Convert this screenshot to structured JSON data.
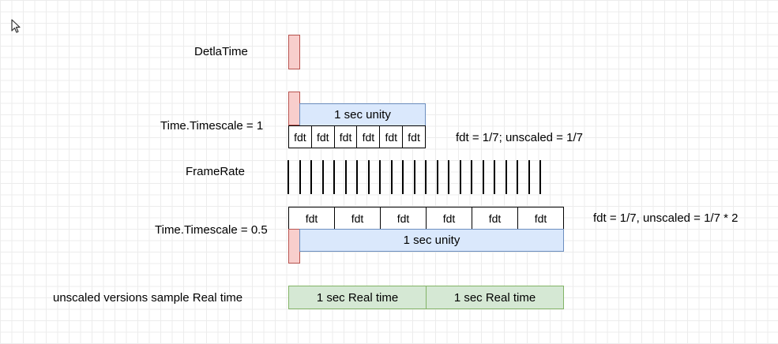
{
  "labels": {
    "delta_time": "DetlaTime",
    "timescale_1": "Time.Timescale = 1",
    "frame_rate": "FrameRate",
    "timescale_05": "Time.Timescale = 0.5",
    "unscaled": "unscaled versions sample Real time"
  },
  "notes": {
    "timescale_1": "fdt = 1/7; unscaled = 1/7",
    "timescale_05": "fdt = 1/7, unscaled = 1/7 * 2"
  },
  "boxes": {
    "unity_1": "1 sec unity",
    "unity_05": "1 sec unity",
    "real_time": [
      "1 sec Real time",
      "1 sec Real time"
    ]
  },
  "fdt_row_1": [
    "fdt",
    "fdt",
    "fdt",
    "fdt",
    "fdt",
    "fdt"
  ],
  "fdt_row_05": [
    "fdt",
    "fdt",
    "fdt",
    "fdt",
    "fdt",
    "fdt"
  ],
  "frame_rate_tick_count": 23,
  "colors": {
    "red_fill": "#f8cecc",
    "blue_fill": "#dae8fc",
    "green_fill": "#d5e8d4"
  },
  "icons": {
    "cursor": "mouse-pointer-icon"
  }
}
